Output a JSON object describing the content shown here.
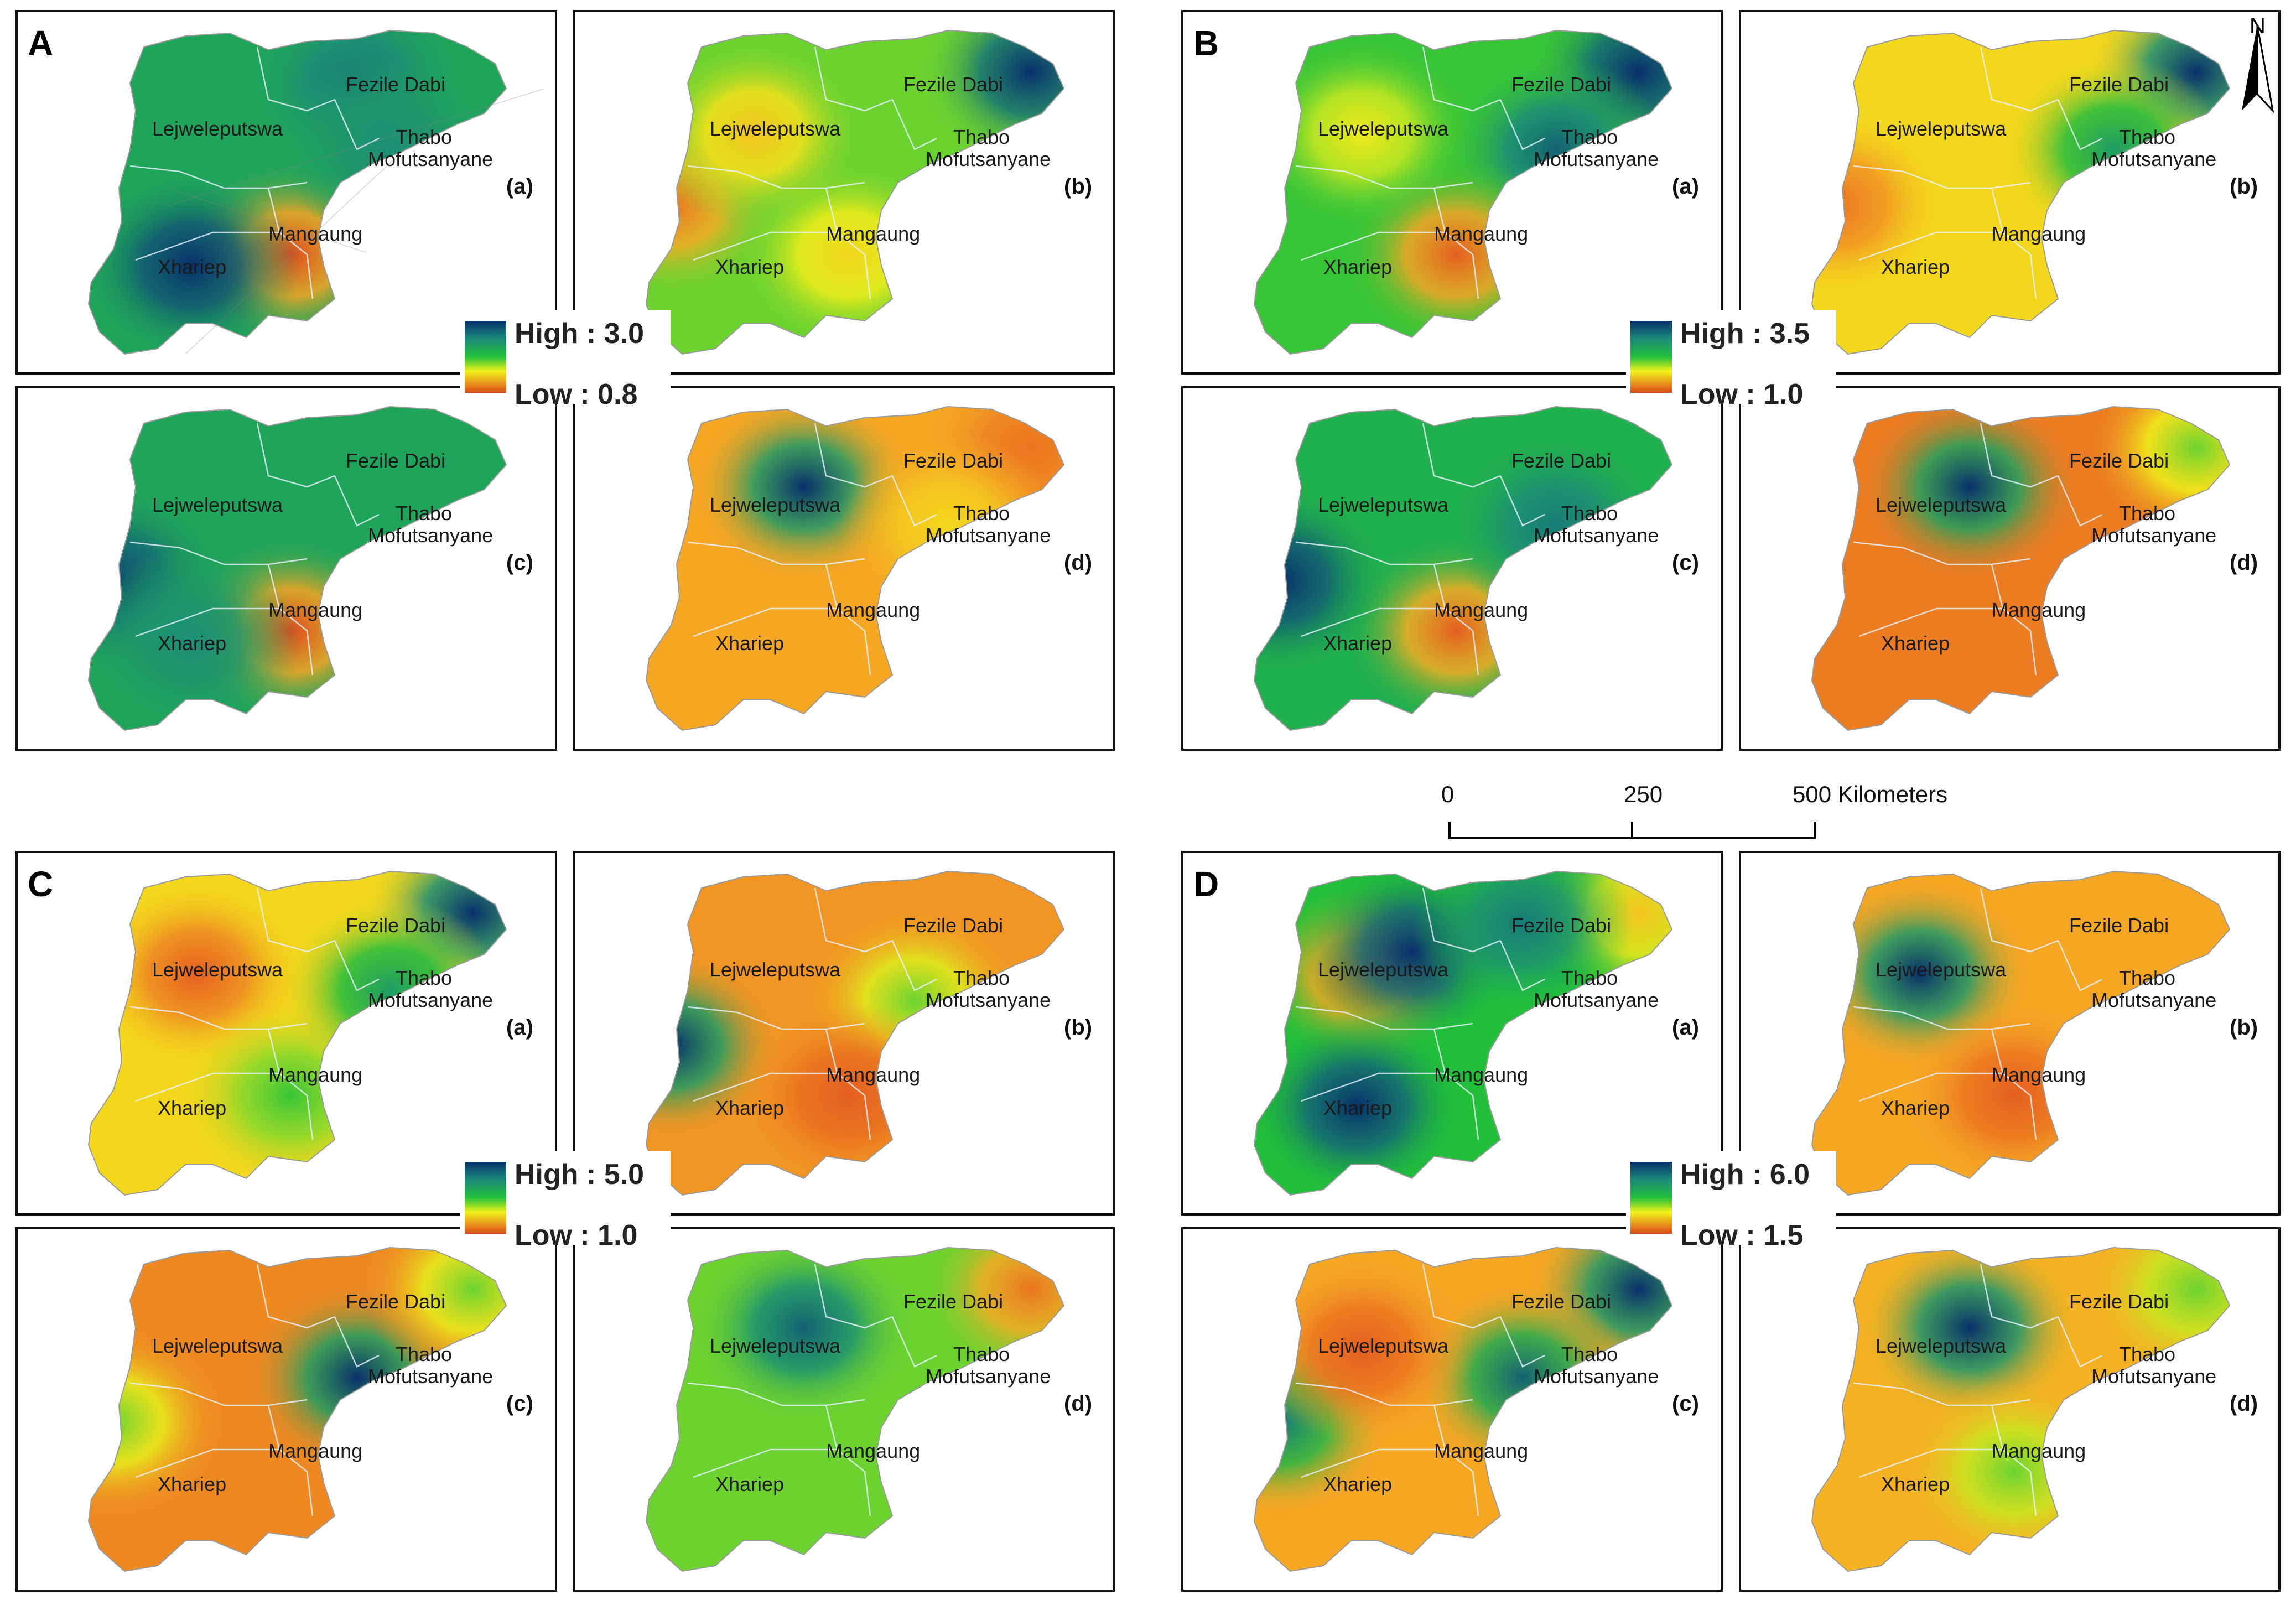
{
  "regions": {
    "fezile_dabi": "Fezile Dabi",
    "lejweleputswa": "Lejweleputswa",
    "thabo_line1": "Thabo",
    "thabo_line2": "Mofutsanyane",
    "mangaung": "Mangaung",
    "xhariep": "Xhariep"
  },
  "groups": [
    {
      "letter": "A",
      "legend": {
        "high": "High : 3.0",
        "low": "Low : 0.8"
      },
      "panels": [
        {
          "tag": "(a)",
          "hot": [
            {
              "region": "mangaung",
              "v": 0.0
            },
            {
              "region": "xhariep",
              "v": 1.0
            },
            {
              "region": "fezile",
              "v": 0.85
            },
            {
              "region": "thabo",
              "v": 0.8
            }
          ],
          "base": 0.72
        },
        {
          "tag": "(b)",
          "hot": [
            {
              "region": "ne",
              "v": 1.0
            },
            {
              "region": "west",
              "v": 0.1
            },
            {
              "region": "mangaung",
              "v": 0.35
            },
            {
              "region": "lejwe",
              "v": 0.3
            }
          ],
          "base": 0.55
        },
        {
          "tag": "(c)",
          "hot": [
            {
              "region": "mangaung",
              "v": 0.0
            },
            {
              "region": "west",
              "v": 0.95
            },
            {
              "region": "xhariep",
              "v": 0.8
            }
          ],
          "base": 0.72
        },
        {
          "tag": "(d)",
          "hot": [
            {
              "region": "lejwe_n",
              "v": 1.0
            },
            {
              "region": "ne",
              "v": 0.1
            },
            {
              "region": "thabo",
              "v": 0.35
            }
          ],
          "base": 0.22
        }
      ]
    },
    {
      "letter": "B",
      "legend": {
        "high": "High : 3.5",
        "low": "Low : 1.0"
      },
      "panels": [
        {
          "tag": "(a)",
          "hot": [
            {
              "region": "ne",
              "v": 1.0
            },
            {
              "region": "thabo",
              "v": 0.9
            },
            {
              "region": "mangaung",
              "v": 0.05
            },
            {
              "region": "lejwe",
              "v": 0.4
            }
          ],
          "base": 0.6
        },
        {
          "tag": "(b)",
          "hot": [
            {
              "region": "ne",
              "v": 1.0
            },
            {
              "region": "west",
              "v": 0.1
            },
            {
              "region": "thabo",
              "v": 0.75
            }
          ],
          "base": 0.35
        },
        {
          "tag": "(c)",
          "hot": [
            {
              "region": "mangaung",
              "v": 0.05
            },
            {
              "region": "west",
              "v": 1.0
            },
            {
              "region": "thabo",
              "v": 0.85
            }
          ],
          "base": 0.68
        },
        {
          "tag": "(d)",
          "hot": [
            {
              "region": "lejwe_n",
              "v": 1.0
            },
            {
              "region": "ne",
              "v": 0.55
            }
          ],
          "base": 0.12
        }
      ]
    },
    {
      "letter": "C",
      "legend": {
        "high": "High : 5.0",
        "low": "Low : 1.0"
      },
      "panels": [
        {
          "tag": "(a)",
          "hot": [
            {
              "region": "ne",
              "v": 1.0
            },
            {
              "region": "lejwe",
              "v": 0.05
            },
            {
              "region": "mangaung",
              "v": 0.6
            },
            {
              "region": "thabo",
              "v": 0.75
            }
          ],
          "base": 0.35
        },
        {
          "tag": "(b)",
          "hot": [
            {
              "region": "west",
              "v": 1.0
            },
            {
              "region": "thabo_s",
              "v": 0.55
            },
            {
              "region": "mangaung",
              "v": 0.05
            }
          ],
          "base": 0.18
        },
        {
          "tag": "(c)",
          "hot": [
            {
              "region": "thabo_s",
              "v": 1.0
            },
            {
              "region": "west",
              "v": 0.55
            },
            {
              "region": "ne",
              "v": 0.55
            }
          ],
          "base": 0.15
        },
        {
          "tag": "(d)",
          "hot": [
            {
              "region": "lejwe_n",
              "v": 0.9
            },
            {
              "region": "ne",
              "v": 0.1
            }
          ],
          "base": 0.55
        }
      ]
    },
    {
      "letter": "D",
      "legend": {
        "high": "High : 6.0",
        "low": "Low : 1.5"
      },
      "panels": [
        {
          "tag": "(a)",
          "hot": [
            {
              "region": "lejwe",
              "v": 0.05
            },
            {
              "region": "lejwe_n",
              "v": 1.0
            },
            {
              "region": "xhariep",
              "v": 1.0
            },
            {
              "region": "ne",
              "v": 0.3
            },
            {
              "region": "fezile",
              "v": 0.85
            }
          ],
          "base": 0.62
        },
        {
          "tag": "(b)",
          "hot": [
            {
              "region": "lejwe",
              "v": 1.0
            },
            {
              "region": "mangaung",
              "v": 0.05
            }
          ],
          "base": 0.22
        },
        {
          "tag": "(c)",
          "hot": [
            {
              "region": "ne",
              "v": 1.0
            },
            {
              "region": "thabo_s",
              "v": 0.9
            },
            {
              "region": "west",
              "v": 0.85
            },
            {
              "region": "lejwe",
              "v": 0.05
            }
          ],
          "base": 0.22
        },
        {
          "tag": "(d)",
          "hot": [
            {
              "region": "lejwe_n",
              "v": 1.0
            },
            {
              "region": "ne",
              "v": 0.55
            },
            {
              "region": "mangaung",
              "v": 0.55
            }
          ],
          "base": 0.25
        }
      ]
    }
  ],
  "north_arrow": "N",
  "scale_bar": {
    "ticks": [
      "0",
      "250",
      "500 Kilometers"
    ]
  },
  "colors": {
    "high": "#08306b",
    "teal": "#1b8a7a",
    "green": "#22c03a",
    "yellow": "#f2f21a",
    "orange": "#f5a623",
    "low": "#e04a1e"
  }
}
